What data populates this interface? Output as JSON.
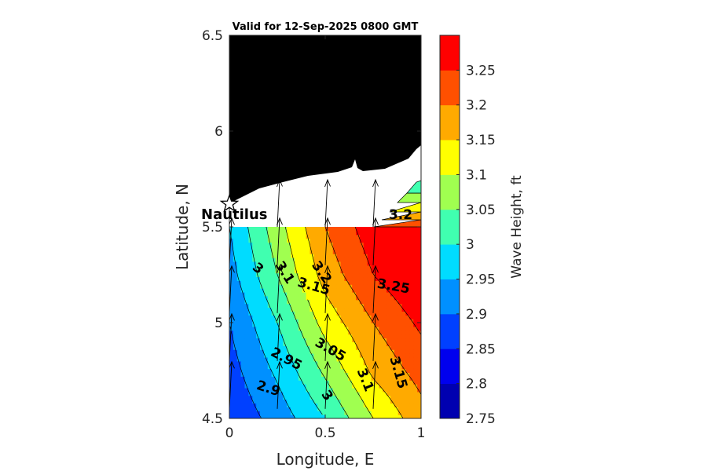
{
  "chart_data": {
    "type": "heatmap",
    "title": "Valid for 12-Sep-2025 0800 GMT",
    "xlabel": "Longitude, E",
    "ylabel": "Latitude, N",
    "xlim": [
      0,
      1
    ],
    "ylim": [
      4.5,
      6.5
    ],
    "xticks": [
      "0",
      "0.5",
      "1"
    ],
    "yticks": [
      "4.5",
      "5",
      "5.5",
      "6",
      "6.5"
    ],
    "colorbar": {
      "label": "Wave Height, ft",
      "range": [
        2.75,
        3.3
      ],
      "ticks": [
        "2.75",
        "2.8",
        "2.85",
        "2.9",
        "2.95",
        "3",
        "3.05",
        "3.1",
        "3.15",
        "3.2",
        "3.25"
      ],
      "colors": [
        "#0000b0",
        "#0000ee",
        "#0040ff",
        "#0090ff",
        "#00dcff",
        "#40ffb0",
        "#a0ff50",
        "#ffff00",
        "#ffaa00",
        "#ff5000",
        "#ff0000"
      ]
    },
    "grid_x": [
      0,
      0.25,
      0.5,
      0.75,
      1
    ],
    "grid_y": [
      4.5,
      4.75,
      5,
      5.25,
      5.5
    ],
    "wave_height": [
      [
        2.86,
        2.92,
        3.0,
        3.1,
        3.18
      ],
      [
        2.88,
        2.96,
        3.06,
        3.16,
        3.22
      ],
      [
        2.9,
        3.0,
        3.12,
        3.2,
        3.26
      ],
      [
        2.93,
        3.05,
        3.17,
        3.25,
        3.3
      ],
      [
        2.95,
        3.08,
        3.2,
        3.28,
        3.31
      ]
    ],
    "contour_labels": [
      "2.9",
      "2.95",
      "3",
      "3",
      "3.05",
      "3.1",
      "3.1",
      "3.15",
      "3.15",
      "3.2",
      "3.2",
      "3.25"
    ],
    "station": {
      "name": "Nautilus",
      "lon": 0.0,
      "lat": 5.62
    },
    "land_color": "#000000",
    "arrows": [
      {
        "lon": 0.0,
        "lat": 4.55
      },
      {
        "lon": 0.25,
        "lat": 4.55
      },
      {
        "lon": 0.5,
        "lat": 4.55
      },
      {
        "lon": 0.75,
        "lat": 4.55
      },
      {
        "lon": 0.0,
        "lat": 4.8
      },
      {
        "lon": 0.25,
        "lat": 4.8
      },
      {
        "lon": 0.5,
        "lat": 4.8
      },
      {
        "lon": 0.75,
        "lat": 4.8
      },
      {
        "lon": 0.0,
        "lat": 5.05
      },
      {
        "lon": 0.25,
        "lat": 5.05
      },
      {
        "lon": 0.5,
        "lat": 5.05
      },
      {
        "lon": 0.75,
        "lat": 5.05
      },
      {
        "lon": 0.0,
        "lat": 5.3
      },
      {
        "lon": 0.25,
        "lat": 5.3
      },
      {
        "lon": 0.5,
        "lat": 5.3
      },
      {
        "lon": 0.75,
        "lat": 5.3
      },
      {
        "lon": 0.25,
        "lat": 5.5
      },
      {
        "lon": 0.5,
        "lat": 5.5
      },
      {
        "lon": 0.75,
        "lat": 5.5
      }
    ]
  }
}
